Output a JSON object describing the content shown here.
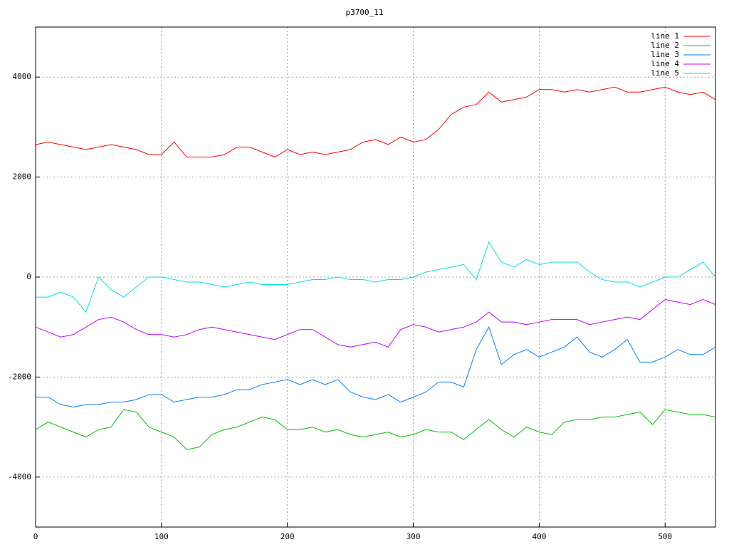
{
  "chart_data": {
    "type": "line",
    "title": "p3700_11",
    "x": [
      0,
      10,
      20,
      30,
      40,
      50,
      60,
      70,
      80,
      90,
      100,
      110,
      120,
      130,
      140,
      150,
      160,
      170,
      180,
      190,
      200,
      210,
      220,
      230,
      240,
      250,
      260,
      270,
      280,
      290,
      300,
      310,
      320,
      330,
      340,
      350,
      360,
      370,
      380,
      390,
      400,
      410,
      420,
      430,
      440,
      450,
      460,
      470,
      480,
      490,
      500,
      510,
      520,
      530,
      540
    ],
    "series": [
      {
        "name": "line 1",
        "color": "#ff0000",
        "values": [
          2650,
          2700,
          2650,
          2600,
          2550,
          2600,
          2650,
          2600,
          2550,
          2450,
          2450,
          2700,
          2400,
          2400,
          2400,
          2450,
          2600,
          2600,
          2500,
          2400,
          2550,
          2450,
          2500,
          2450,
          2500,
          2550,
          2700,
          2750,
          2650,
          2800,
          2700,
          2750,
          2950,
          3250,
          3400,
          3450,
          3700,
          3500,
          3550,
          3600,
          3750,
          3750,
          3700,
          3750,
          3700,
          3750,
          3800,
          3700,
          3700,
          3750,
          3800,
          3700,
          3650,
          3700,
          3550
        ]
      },
      {
        "name": "line 2",
        "color": "#00c000",
        "values": [
          -3050,
          -2900,
          -3000,
          -3100,
          -3200,
          -3050,
          -3000,
          -2650,
          -2700,
          -3000,
          -3100,
          -3200,
          -3450,
          -3400,
          -3150,
          -3050,
          -3000,
          -2900,
          -2800,
          -2850,
          -3050,
          -3050,
          -3000,
          -3100,
          -3050,
          -3150,
          -3200,
          -3150,
          -3100,
          -3200,
          -3150,
          -3050,
          -3100,
          -3100,
          -3250,
          -3050,
          -2850,
          -3050,
          -3200,
          -3000,
          -3100,
          -3150,
          -2900,
          -2850,
          -2850,
          -2800,
          -2800,
          -2750,
          -2700,
          -2950,
          -2650,
          -2700,
          -2750,
          -2750,
          -2800
        ]
      },
      {
        "name": "line 3",
        "color": "#0080ff",
        "values": [
          -2400,
          -2400,
          -2550,
          -2600,
          -2550,
          -2550,
          -2500,
          -2500,
          -2450,
          -2350,
          -2350,
          -2500,
          -2450,
          -2400,
          -2400,
          -2350,
          -2250,
          -2250,
          -2150,
          -2100,
          -2050,
          -2150,
          -2050,
          -2150,
          -2050,
          -2300,
          -2400,
          -2450,
          -2350,
          -2500,
          -2400,
          -2300,
          -2100,
          -2100,
          -2200,
          -1450,
          -1000,
          -1750,
          -1550,
          -1450,
          -1600,
          -1500,
          -1400,
          -1200,
          -1500,
          -1600,
          -1450,
          -1250,
          -1700,
          -1700,
          -1600,
          -1450,
          -1550,
          -1550,
          -1400
        ]
      },
      {
        "name": "line 4",
        "color": "#c000ff",
        "values": [
          -1000,
          -1100,
          -1200,
          -1150,
          -1000,
          -850,
          -800,
          -900,
          -1050,
          -1150,
          -1150,
          -1200,
          -1150,
          -1050,
          -1000,
          -1050,
          -1100,
          -1150,
          -1200,
          -1250,
          -1150,
          -1050,
          -1050,
          -1200,
          -1350,
          -1400,
          -1350,
          -1300,
          -1400,
          -1050,
          -950,
          -1000,
          -1100,
          -1050,
          -1000,
          -900,
          -700,
          -900,
          -900,
          -950,
          -900,
          -850,
          -850,
          -850,
          -950,
          -900,
          -850,
          -800,
          -850,
          -650,
          -450,
          -500,
          -550,
          -450,
          -550
        ]
      },
      {
        "name": "line 5",
        "color": "#00e0e0",
        "values": [
          -400,
          -400,
          -300,
          -400,
          -700,
          0,
          -250,
          -400,
          -200,
          0,
          0,
          -50,
          -100,
          -100,
          -150,
          -200,
          -150,
          -100,
          -150,
          -150,
          -150,
          -100,
          -50,
          -50,
          0,
          -50,
          -50,
          -100,
          -50,
          -50,
          0,
          100,
          150,
          200,
          250,
          -50,
          700,
          300,
          200,
          350,
          250,
          300,
          300,
          300,
          100,
          -50,
          -100,
          -100,
          -200,
          -100,
          0,
          0,
          150,
          300,
          0
        ]
      }
    ],
    "xlim": [
      0,
      540
    ],
    "ylim": [
      -5000,
      5000
    ],
    "xticks": [
      0,
      100,
      200,
      300,
      400,
      500
    ],
    "yticks": [
      -4000,
      -2000,
      0,
      2000,
      4000
    ],
    "grid": true,
    "legend": "top-right"
  }
}
